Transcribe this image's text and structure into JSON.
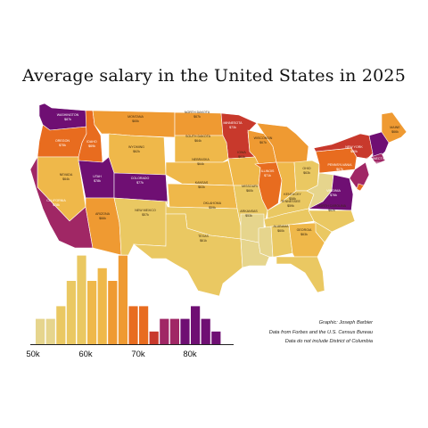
{
  "title": "Average salary in the United States in 2025",
  "credits": [
    "Graphic: Joseph Barbier",
    "Data from Forbes and the U.S. Census Bureau",
    "Data do not include District of Columbia"
  ],
  "colors": {
    "c50": "#e6d58d",
    "c55": "#eac862",
    "c60": "#efb84a",
    "c65": "#ef9a32",
    "c70": "#e86c1f",
    "c75": "#c8392c",
    "c80": "#a02765",
    "c85": "#6f0f73"
  },
  "states": [
    {
      "name": "Washington",
      "value": "$87k",
      "bin": "c85"
    },
    {
      "name": "Oregon",
      "value": "$75k",
      "bin": "c70"
    },
    {
      "name": "Idaho",
      "value": "$69k",
      "bin": "c70"
    },
    {
      "name": "Montana",
      "value": "$65k",
      "bin": "c65"
    },
    {
      "name": "North Dakota",
      "value": "$67k",
      "bin": "c65"
    },
    {
      "name": "Minnesota",
      "value": "$73k",
      "bin": "c75"
    },
    {
      "name": "Wisconsin",
      "value": "$67k",
      "bin": "c65"
    },
    {
      "name": "Michigan",
      "value": "",
      "bin": "c65"
    },
    {
      "name": "Maine",
      "value": "$66k",
      "bin": "c65"
    },
    {
      "name": "Wyoming",
      "value": "$62k",
      "bin": "c60"
    },
    {
      "name": "South Dakota",
      "value": "$64k",
      "bin": "c60"
    },
    {
      "name": "Nebraska",
      "value": "$64k",
      "bin": "c60"
    },
    {
      "name": "Iowa",
      "value": "$61k",
      "bin": "c60"
    },
    {
      "name": "Illinois",
      "value": "$71k",
      "bin": "c70"
    },
    {
      "name": "Indiana",
      "value": "",
      "bin": "c60"
    },
    {
      "name": "Ohio",
      "value": "$63k",
      "bin": "c55"
    },
    {
      "name": "Pennsylvania",
      "value": "$67k",
      "bin": "c70"
    },
    {
      "name": "New York",
      "value": "$80k",
      "bin": "c75"
    },
    {
      "name": "New England",
      "value": "",
      "bin": "c85"
    },
    {
      "name": "Connecticut",
      "value": "$80k",
      "bin": "c80"
    },
    {
      "name": "Nevada",
      "value": "$64k",
      "bin": "c60"
    },
    {
      "name": "Utah",
      "value": "$78k",
      "bin": "c85"
    },
    {
      "name": "Colorado",
      "value": "$77k",
      "bin": "c85"
    },
    {
      "name": "Kansas",
      "value": "$63k",
      "bin": "c60"
    },
    {
      "name": "Missouri",
      "value": "$60k",
      "bin": "c55"
    },
    {
      "name": "Kentucky",
      "value": "$58k",
      "bin": "c55"
    },
    {
      "name": "West Virginia",
      "value": "",
      "bin": "c50"
    },
    {
      "name": "Virginia",
      "value": "$76k",
      "bin": "c85"
    },
    {
      "name": "Maryland / New Jersey",
      "value": "",
      "bin": "c80"
    },
    {
      "name": "Delaware",
      "value": "",
      "bin": "c70"
    },
    {
      "name": "California",
      "value": "$78k",
      "bin": "c80"
    },
    {
      "name": "Arizona",
      "value": "$66k",
      "bin": "c65"
    },
    {
      "name": "New Mexico",
      "value": "$57k",
      "bin": "c55"
    },
    {
      "name": "Oklahoma",
      "value": "$59k",
      "bin": "c55"
    },
    {
      "name": "Arkansas",
      "value": "$53k",
      "bin": "c50"
    },
    {
      "name": "Tennessee",
      "value": "$59k",
      "bin": "c55"
    },
    {
      "name": "North Carolina",
      "value": "$62k",
      "bin": "c55"
    },
    {
      "name": "South Carolina",
      "value": "",
      "bin": "c55"
    },
    {
      "name": "Texas",
      "value": "$61k",
      "bin": "c55"
    },
    {
      "name": "Louisiana",
      "value": "",
      "bin": "c50"
    },
    {
      "name": "Mississippi",
      "value": "",
      "bin": "c50"
    },
    {
      "name": "Alabama",
      "value": "$60k",
      "bin": "c55"
    },
    {
      "name": "Georgia",
      "value": "$63k",
      "bin": "c60"
    },
    {
      "name": "Florida",
      "value": "",
      "bin": "c55"
    }
  ],
  "histogram": {
    "x_ticks": [
      "50k",
      "60k",
      "70k",
      "80k"
    ],
    "bins": [
      {
        "count": 2,
        "color": "c50"
      },
      {
        "count": 2,
        "color": "c50"
      },
      {
        "count": 3,
        "color": "c55"
      },
      {
        "count": 5,
        "color": "c55"
      },
      {
        "count": 7,
        "color": "c55"
      },
      {
        "count": 5,
        "color": "c60"
      },
      {
        "count": 6,
        "color": "c60"
      },
      {
        "count": 5,
        "color": "c65"
      },
      {
        "count": 7,
        "color": "c65"
      },
      {
        "count": 3,
        "color": "c70"
      },
      {
        "count": 3,
        "color": "c70"
      },
      {
        "count": 1,
        "color": "c75"
      },
      {
        "count": 2,
        "color": "c80"
      },
      {
        "count": 2,
        "color": "c80"
      },
      {
        "count": 2,
        "color": "c85"
      },
      {
        "count": 3,
        "color": "c85"
      },
      {
        "count": 2,
        "color": "c85"
      },
      {
        "count": 1,
        "color": "c85"
      }
    ]
  }
}
